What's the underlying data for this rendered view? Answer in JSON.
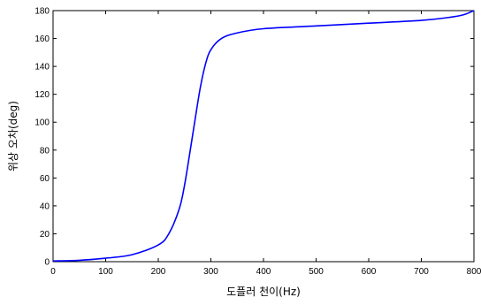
{
  "chart_data": {
    "type": "line",
    "xlabel": "도플러 천이(Hz)",
    "ylabel": "위상 오차(deg)",
    "xlim": [
      0,
      800
    ],
    "ylim": [
      0,
      180
    ],
    "xticks": [
      0,
      100,
      200,
      300,
      400,
      500,
      600,
      700,
      800
    ],
    "yticks": [
      0,
      20,
      40,
      60,
      80,
      100,
      120,
      140,
      160,
      180
    ],
    "grid": false,
    "legend": "none",
    "series": [
      {
        "color": "#0000ff",
        "x": [
          0,
          50,
          100,
          150,
          200,
          220,
          240,
          250,
          260,
          265,
          270,
          280,
          290,
          300,
          320,
          350,
          400,
          500,
          600,
          700,
          750,
          780,
          800
        ],
        "y": [
          0.5,
          1,
          2.5,
          5,
          12,
          20,
          38,
          55,
          78,
          90,
          102,
          125,
          142,
          152,
          160,
          164,
          167,
          169,
          171,
          173,
          175,
          177,
          180
        ]
      }
    ]
  }
}
